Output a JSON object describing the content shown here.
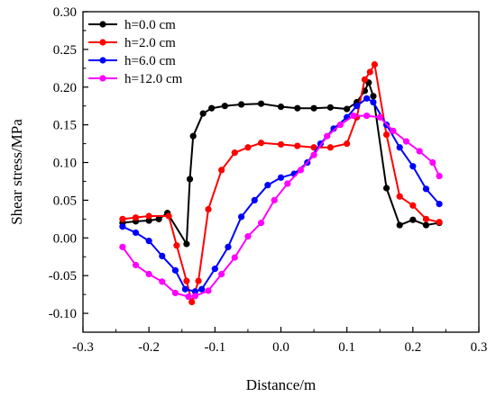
{
  "chart_data": {
    "type": "line",
    "title": "",
    "xlabel": "Distance/m",
    "ylabel": "Shear stress/MPa",
    "xlim": [
      -0.3,
      0.3
    ],
    "ylim": [
      -0.125,
      0.3
    ],
    "xticks": [
      -0.3,
      -0.2,
      -0.1,
      0.0,
      0.1,
      0.2,
      0.3
    ],
    "xtick_labels": [
      "-0.3",
      "-0.2",
      "-0.1",
      "0.0",
      "0.1",
      "0.2",
      "0.3"
    ],
    "yticks": [
      -0.1,
      -0.05,
      0.0,
      0.05,
      0.1,
      0.15,
      0.2,
      0.25,
      0.3
    ],
    "ytick_labels": [
      "-0.10",
      "-0.05",
      "0.00",
      "0.05",
      "0.10",
      "0.15",
      "0.20",
      "0.25",
      "0.30"
    ],
    "grid": false,
    "legend_position": "top-left",
    "series": [
      {
        "name": "h=0.0 cm",
        "color": "#000000",
        "x": [
          -0.24,
          -0.22,
          -0.2,
          -0.185,
          -0.172,
          -0.143,
          -0.138,
          -0.133,
          -0.118,
          -0.105,
          -0.085,
          -0.06,
          -0.03,
          0.0,
          0.025,
          0.05,
          0.075,
          0.1,
          0.115,
          0.127,
          0.133,
          0.14,
          0.16,
          0.18,
          0.2,
          0.22,
          0.24
        ],
        "y": [
          0.02,
          0.022,
          0.023,
          0.025,
          0.033,
          -0.008,
          0.078,
          0.135,
          0.165,
          0.172,
          0.175,
          0.177,
          0.178,
          0.174,
          0.172,
          0.172,
          0.173,
          0.171,
          0.18,
          0.195,
          0.206,
          0.188,
          0.066,
          0.017,
          0.024,
          0.017,
          0.02
        ]
      },
      {
        "name": "h=2.0 cm",
        "color": "#ff0000",
        "x": [
          -0.24,
          -0.22,
          -0.2,
          -0.17,
          -0.158,
          -0.143,
          -0.135,
          -0.125,
          -0.11,
          -0.09,
          -0.07,
          -0.05,
          -0.03,
          0.0,
          0.025,
          0.05,
          0.075,
          0.1,
          0.115,
          0.127,
          0.135,
          0.142,
          0.16,
          0.18,
          0.2,
          0.22,
          0.24
        ],
        "y": [
          0.025,
          0.027,
          0.029,
          0.029,
          -0.01,
          -0.057,
          -0.085,
          -0.057,
          0.038,
          0.09,
          0.113,
          0.12,
          0.126,
          0.124,
          0.122,
          0.12,
          0.12,
          0.125,
          0.16,
          0.21,
          0.22,
          0.23,
          0.137,
          0.055,
          0.043,
          0.025,
          0.021
        ]
      },
      {
        "name": "h=6.0 cm",
        "color": "#0000ff",
        "x": [
          -0.24,
          -0.22,
          -0.2,
          -0.18,
          -0.16,
          -0.145,
          -0.13,
          -0.12,
          -0.1,
          -0.08,
          -0.06,
          -0.04,
          -0.02,
          0.0,
          0.02,
          0.04,
          0.06,
          0.08,
          0.1,
          0.115,
          0.13,
          0.14,
          0.16,
          0.18,
          0.2,
          0.22,
          0.24
        ],
        "y": [
          0.015,
          0.007,
          -0.004,
          -0.024,
          -0.043,
          -0.068,
          -0.071,
          -0.068,
          -0.041,
          -0.012,
          0.028,
          0.05,
          0.07,
          0.08,
          0.085,
          0.1,
          0.125,
          0.145,
          0.16,
          0.175,
          0.185,
          0.18,
          0.15,
          0.12,
          0.095,
          0.065,
          0.045
        ]
      },
      {
        "name": "h=12.0 cm",
        "color": "#ff00ff",
        "x": [
          -0.24,
          -0.22,
          -0.2,
          -0.18,
          -0.16,
          -0.14,
          -0.13,
          -0.11,
          -0.09,
          -0.07,
          -0.05,
          -0.03,
          -0.01,
          0.01,
          0.03,
          0.05,
          0.07,
          0.09,
          0.11,
          0.13,
          0.15,
          0.17,
          0.19,
          0.21,
          0.23,
          0.24
        ],
        "y": [
          -0.012,
          -0.036,
          -0.048,
          -0.058,
          -0.073,
          -0.078,
          -0.077,
          -0.07,
          -0.048,
          -0.026,
          0.002,
          0.02,
          0.05,
          0.072,
          0.09,
          0.11,
          0.135,
          0.15,
          0.162,
          0.162,
          0.16,
          0.142,
          0.128,
          0.115,
          0.1,
          0.082
        ]
      }
    ]
  }
}
